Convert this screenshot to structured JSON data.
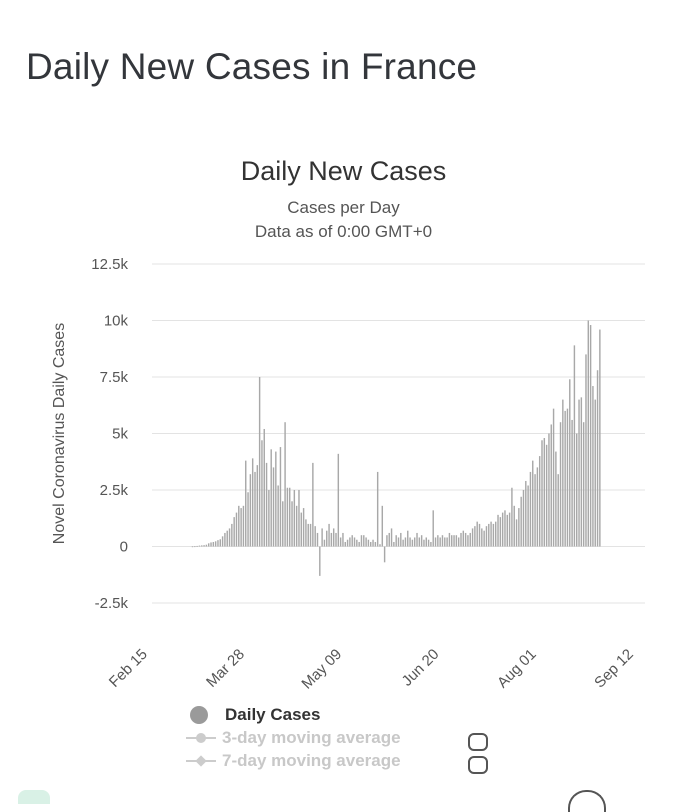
{
  "page": {
    "title": "Daily New Cases in France"
  },
  "legend": {
    "items": [
      {
        "label": "Daily Cases",
        "state": "active",
        "marker": "circle"
      },
      {
        "label": "3-day moving average",
        "state": "inactive",
        "marker": "circle"
      },
      {
        "label": "7-day moving average",
        "state": "inactive",
        "marker": "diamond"
      }
    ]
  },
  "chart_data": {
    "type": "bar",
    "title": "Daily New Cases",
    "subtitle": "Cases per Day",
    "subtitle2": "Data as of 0:00 GMT+0",
    "ylabel": "Novel Coronavirus Daily Cases",
    "xlabel": "",
    "ylim": [
      -2500,
      12500
    ],
    "yticks": [
      12500,
      10000,
      7500,
      5000,
      2500,
      0,
      -2500
    ],
    "ytick_labels": [
      "12.5k",
      "10k",
      "7.5k",
      "5k",
      "2.5k",
      "0",
      "-2.5k"
    ],
    "x_start": "Feb 15",
    "x_end": "Sep 14",
    "xtick_labels": [
      "Feb 15",
      "Mar 28",
      "May 09",
      "Jun 20",
      "Aug 01",
      "Sep 12"
    ],
    "xtick_days": [
      0,
      42,
      84,
      126,
      168,
      210
    ],
    "grid": true,
    "legend_position": "bottom",
    "bar_color": "#a8a8a8",
    "series": [
      {
        "name": "Daily Cases",
        "values": [
          0,
          0,
          0,
          0,
          0,
          0,
          0,
          0,
          0,
          0,
          0,
          0,
          0,
          0,
          0,
          0,
          0,
          5,
          10,
          25,
          40,
          50,
          60,
          80,
          140,
          180,
          200,
          230,
          280,
          320,
          450,
          600,
          700,
          800,
          1000,
          1300,
          1500,
          1800,
          1700,
          1800,
          3800,
          2400,
          3200,
          3900,
          3300,
          3600,
          7500,
          4700,
          5200,
          3700,
          2500,
          4300,
          3500,
          4200,
          2700,
          4400,
          2000,
          5500,
          2600,
          2600,
          2000,
          2500,
          1800,
          2500,
          1500,
          1700,
          1200,
          1000,
          1000,
          3700,
          900,
          600,
          -1300,
          800,
          300,
          700,
          1000,
          600,
          800,
          600,
          4100,
          400,
          600,
          200,
          300,
          400,
          500,
          400,
          300,
          200,
          500,
          500,
          400,
          300,
          200,
          300,
          200,
          3300,
          100,
          1800,
          -700,
          500,
          600,
          800,
          200,
          500,
          400,
          600,
          300,
          400,
          700,
          400,
          300,
          400,
          600,
          400,
          500,
          300,
          400,
          300,
          200,
          1600,
          400,
          500,
          400,
          500,
          400,
          400,
          600,
          500,
          500,
          500,
          400,
          600,
          700,
          600,
          500,
          600,
          800,
          900,
          1100,
          1000,
          800,
          700,
          900,
          1000,
          1100,
          1000,
          1100,
          1400,
          1300,
          1500,
          1600,
          1400,
          1500,
          2600,
          1800,
          1200,
          1700,
          2200,
          2500,
          2900,
          2700,
          3300,
          3800,
          3200,
          3500,
          4000,
          4700,
          4800,
          4500,
          5000,
          5400,
          6100,
          4200,
          3200,
          5500,
          6500,
          6000,
          6100,
          7400,
          5600,
          8900,
          5000,
          6500,
          6600,
          5500,
          8500,
          10000,
          9800,
          7100,
          6500,
          7800,
          9600
        ]
      }
    ]
  }
}
